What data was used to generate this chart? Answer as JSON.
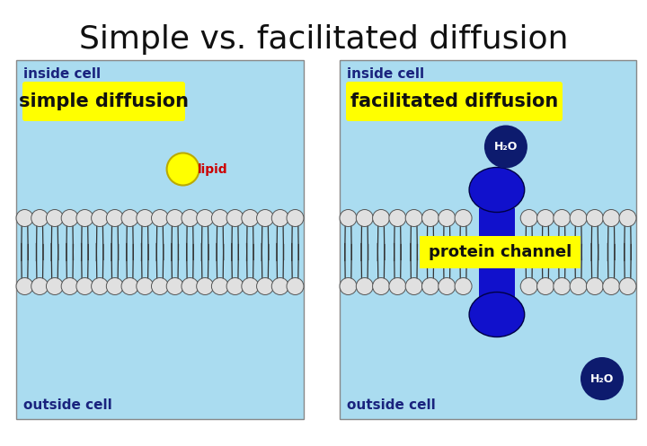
{
  "title": "Simple vs. facilitated diffusion",
  "title_fontsize": 26,
  "bg_color": "#ffffff",
  "panel_bg": "#aadcf0",
  "label_simple": "simple diffusion",
  "label_facilitated": "facilitated diffusion",
  "label_bg": "#ffff00",
  "label_fontsize": 15,
  "inside_cell": "inside cell",
  "outside_cell": "outside cell",
  "cell_label_fontsize": 11,
  "cell_label_color": "#1a237e",
  "lipid_color": "#ffff00",
  "lipid_label": "lipid",
  "lipid_label_color": "#cc0000",
  "h2o_color": "#0d1b6e",
  "h2o_label": "H₂O",
  "protein_color": "#1111cc",
  "protein_channel_label": "protein channel",
  "protein_channel_label_bg": "#ffff00",
  "head_color": "#e0e0e0",
  "head_edge": "#555555"
}
